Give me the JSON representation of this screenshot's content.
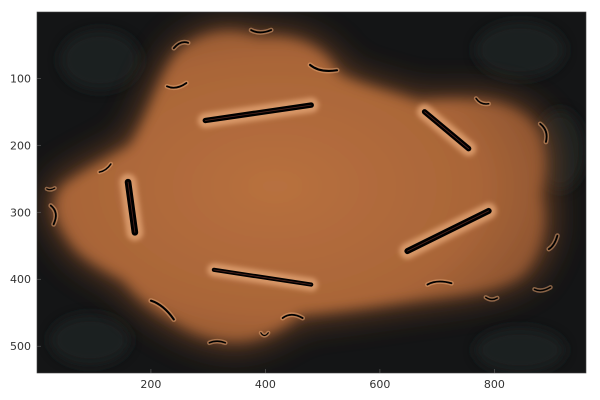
{
  "chart_data": {
    "type": "heatmap",
    "title": "",
    "xlabel": "",
    "ylabel": "",
    "xlim": [
      1,
      960
    ],
    "ylim": [
      540,
      1
    ],
    "y_inverted": true,
    "grid": false,
    "legend": "none",
    "x_ticks": [
      {
        "value": 200,
        "label": "200"
      },
      {
        "value": 400,
        "label": "400"
      },
      {
        "value": 600,
        "label": "600"
      },
      {
        "value": 800,
        "label": "800"
      }
    ],
    "y_ticks": [
      {
        "value": 100,
        "label": "100"
      },
      {
        "value": 200,
        "label": "200"
      },
      {
        "value": 300,
        "label": "300"
      },
      {
        "value": 400,
        "label": "400"
      },
      {
        "value": 500,
        "label": "500"
      }
    ],
    "colors": {
      "background": "#141516",
      "glow": "#8a5230",
      "body": "#b36b3c",
      "bright": "#e0a070",
      "slit": "#000000"
    },
    "slits": [
      {
        "x1": 295,
        "y1": 163,
        "x2": 480,
        "y2": 140,
        "width": 9
      },
      {
        "x1": 678,
        "y1": 150,
        "x2": 755,
        "y2": 205,
        "width": 9
      },
      {
        "x1": 160,
        "y1": 255,
        "x2": 172,
        "y2": 330,
        "width": 11
      },
      {
        "x1": 648,
        "y1": 358,
        "x2": 790,
        "y2": 298,
        "width": 10
      },
      {
        "x1": 310,
        "y1": 386,
        "x2": 480,
        "y2": 408,
        "width": 7
      }
    ],
    "arcs": [
      {
        "x1": 240,
        "y1": 55,
        "cx": 252,
        "cy": 43,
        "x2": 265,
        "y2": 47,
        "width": 3
      },
      {
        "x1": 375,
        "y1": 28,
        "cx": 390,
        "cy": 35,
        "x2": 410,
        "y2": 28,
        "width": 3
      },
      {
        "x1": 478,
        "y1": 80,
        "cx": 495,
        "cy": 92,
        "x2": 525,
        "y2": 88,
        "width": 3.5
      },
      {
        "x1": 228,
        "y1": 112,
        "cx": 244,
        "cy": 118,
        "x2": 262,
        "y2": 107,
        "width": 3
      },
      {
        "x1": 768,
        "y1": 130,
        "cx": 776,
        "cy": 140,
        "x2": 790,
        "y2": 138,
        "width": 2.5
      },
      {
        "x1": 880,
        "y1": 168,
        "cx": 895,
        "cy": 178,
        "x2": 890,
        "y2": 195,
        "width": 3
      },
      {
        "x1": 110,
        "y1": 240,
        "cx": 122,
        "cy": 238,
        "x2": 130,
        "y2": 228,
        "width": 2.5
      },
      {
        "x1": 25,
        "y1": 290,
        "cx": 40,
        "cy": 300,
        "x2": 30,
        "y2": 318,
        "width": 3
      },
      {
        "x1": 18,
        "y1": 265,
        "cx": 24,
        "cy": 268,
        "x2": 32,
        "y2": 264,
        "width": 2
      },
      {
        "x1": 895,
        "y1": 355,
        "cx": 905,
        "cy": 350,
        "x2": 910,
        "y2": 335,
        "width": 3
      },
      {
        "x1": 683,
        "y1": 408,
        "cx": 700,
        "cy": 400,
        "x2": 725,
        "y2": 406,
        "width": 3
      },
      {
        "x1": 785,
        "y1": 427,
        "cx": 795,
        "cy": 433,
        "x2": 805,
        "y2": 428,
        "width": 2.5
      },
      {
        "x1": 870,
        "y1": 415,
        "cx": 882,
        "cy": 420,
        "x2": 898,
        "y2": 412,
        "width": 2.5
      },
      {
        "x1": 200,
        "y1": 432,
        "cx": 222,
        "cy": 438,
        "x2": 240,
        "y2": 460,
        "width": 3.5
      },
      {
        "x1": 430,
        "y1": 458,
        "cx": 445,
        "cy": 448,
        "x2": 465,
        "y2": 458,
        "width": 3
      },
      {
        "x1": 302,
        "y1": 495,
        "cx": 315,
        "cy": 490,
        "x2": 330,
        "y2": 495,
        "width": 2.5
      },
      {
        "x1": 392,
        "y1": 480,
        "cx": 398,
        "cy": 488,
        "x2": 405,
        "y2": 480,
        "width": 2
      }
    ]
  }
}
